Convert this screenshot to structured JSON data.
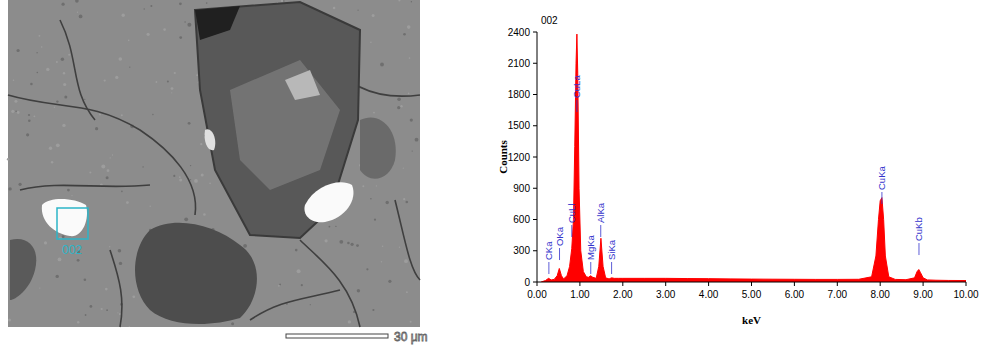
{
  "image": {
    "box_label": "002",
    "scale_bar": "30 μm"
  },
  "chart_data": {
    "type": "area",
    "title": "002",
    "x_label": "keV",
    "y_label": "Counts",
    "color": "#ff0000",
    "grid": false,
    "xlim": [
      0,
      10
    ],
    "ylim": [
      0,
      2400
    ],
    "xticks": [
      {
        "value": 0,
        "label": "0.00"
      },
      {
        "value": 1,
        "label": "1.00"
      },
      {
        "value": 2,
        "label": "2.00"
      },
      {
        "value": 3,
        "label": "3.00"
      },
      {
        "value": 4,
        "label": "4.00"
      },
      {
        "value": 5,
        "label": "5.00"
      },
      {
        "value": 6,
        "label": "6.00"
      },
      {
        "value": 7,
        "label": "7.00"
      },
      {
        "value": 8,
        "label": "8.00"
      },
      {
        "value": 9,
        "label": "9.00"
      },
      {
        "value": 10,
        "label": "10.00"
      }
    ],
    "yticks": [
      0,
      300,
      600,
      900,
      1200,
      1500,
      1800,
      2100,
      2400
    ],
    "x": [
      0.1,
      0.2,
      0.27,
      0.33,
      0.4,
      0.47,
      0.52,
      0.57,
      0.62,
      0.7,
      0.76,
      0.81,
      0.85,
      0.88,
      0.91,
      0.93,
      0.95,
      0.98,
      1.02,
      1.08,
      1.15,
      1.2,
      1.25,
      1.3,
      1.38,
      1.44,
      1.49,
      1.54,
      1.6,
      1.68,
      1.74,
      1.8,
      1.9,
      2.0,
      2.5,
      3.0,
      3.5,
      4.0,
      4.5,
      5.0,
      5.5,
      6.0,
      6.5,
      7.0,
      7.5,
      7.8,
      7.9,
      7.96,
      8.0,
      8.04,
      8.08,
      8.12,
      8.2,
      8.35,
      8.6,
      8.8,
      8.86,
      8.9,
      8.94,
      9.0,
      9.1,
      9.3,
      9.6,
      10.0
    ],
    "values": [
      0,
      15,
      35,
      20,
      25,
      60,
      130,
      60,
      30,
      60,
      150,
      320,
      600,
      1300,
      2100,
      2380,
      2000,
      900,
      300,
      100,
      50,
      45,
      60,
      45,
      35,
      150,
      420,
      150,
      40,
      30,
      40,
      35,
      35,
      35,
      35,
      35,
      33,
      32,
      30,
      28,
      27,
      26,
      25,
      25,
      26,
      50,
      250,
      600,
      780,
      810,
      600,
      250,
      50,
      25,
      22,
      40,
      100,
      120,
      90,
      40,
      20,
      17,
      15,
      14
    ],
    "annotations": [
      {
        "text": "CKa",
        "x": 0.277,
        "y": 192
      },
      {
        "text": "OKa",
        "x": 0.525,
        "y": 326
      },
      {
        "text": "CuLl",
        "x": 0.811,
        "y": 547
      },
      {
        "text": "CuLa",
        "x": 0.93,
        "y": 1747
      },
      {
        "text": "MgKa",
        "x": 1.253,
        "y": 192
      },
      {
        "text": "AlKa",
        "x": 1.486,
        "y": 547
      },
      {
        "text": "SiKa",
        "x": 1.739,
        "y": 192
      },
      {
        "text": "CuKa",
        "x": 8.04,
        "y": 864
      },
      {
        "text": "CuKb",
        "x": 8.904,
        "y": 374
      }
    ]
  }
}
